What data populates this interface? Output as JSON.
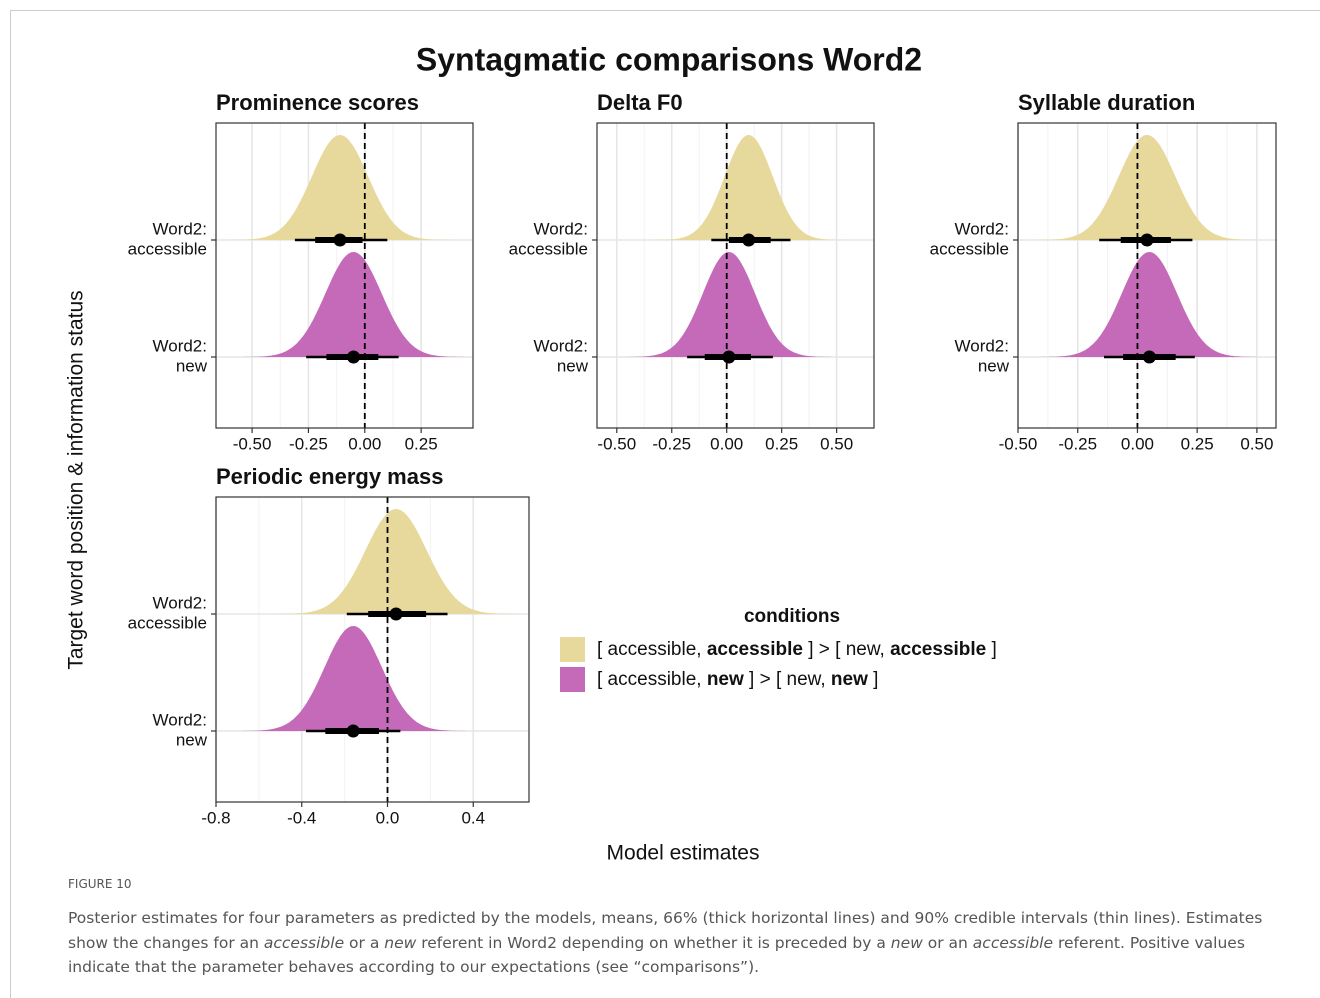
{
  "title": "Syntagmatic comparisons Word2",
  "y_label": "Target word position & information status",
  "x_label": "Model estimates",
  "legend": {
    "title": "conditions",
    "items": [
      {
        "color": "#e6d99b",
        "parts": [
          "[ accessible, ",
          "accessible",
          " ] > [ new, ",
          "accessible",
          " ]"
        ]
      },
      {
        "color": "#c46ab9",
        "parts": [
          "[ accessible, ",
          "new",
          " ] > [ new, ",
          "new",
          " ]"
        ]
      }
    ]
  },
  "caption": {
    "label": "FIGURE 10",
    "parts": [
      "Posterior estimates for four parameters as predicted by the models, means, 66% (thick horizontal lines) and 90% credible intervals (thin lines). Estimates show the changes for an ",
      "accessible",
      " or a ",
      "new",
      " referent in Word2 depending on whether it is preceded by a ",
      "new",
      " or an ",
      "accessible",
      " referent. Positive values indicate that the parameter behaves according to our expectations (see “comparisons”)."
    ]
  },
  "chart_data": [
    {
      "type": "halfeye",
      "title": "Prominence scores",
      "categories": [
        [
          "Word2:",
          "accessible"
        ],
        [
          "Word2:",
          "new"
        ]
      ],
      "colors": [
        "#e6d99b",
        "#c46ab9"
      ],
      "values": [
        -0.11,
        -0.05
      ],
      "ci66": [
        [
          -0.22,
          -0.01
        ],
        [
          -0.17,
          0.06
        ]
      ],
      "ci90": [
        [
          -0.31,
          0.1
        ],
        [
          -0.26,
          0.15
        ]
      ],
      "xlim": [
        -0.66,
        0.48
      ],
      "ref": 0,
      "xticks": [
        {
          "value": -0.5,
          "label": "-0.50"
        },
        {
          "value": -0.25,
          "label": "-0.25"
        },
        {
          "value": 0,
          "label": "0.00"
        },
        {
          "value": 0.25,
          "label": "0.25"
        }
      ],
      "grid": true
    },
    {
      "type": "halfeye",
      "title": "Delta F0",
      "categories": [
        [
          "Word2:",
          "accessible"
        ],
        [
          "Word2:",
          "new"
        ]
      ],
      "colors": [
        "#e6d99b",
        "#c46ab9"
      ],
      "values": [
        0.1,
        0.01
      ],
      "ci66": [
        [
          0.01,
          0.2
        ],
        [
          -0.1,
          0.11
        ]
      ],
      "ci90": [
        [
          -0.07,
          0.29
        ],
        [
          -0.18,
          0.21
        ]
      ],
      "xlim": [
        -0.59,
        0.67
      ],
      "ref": 0,
      "xticks": [
        {
          "value": -0.5,
          "label": "-0.50"
        },
        {
          "value": -0.25,
          "label": "-0.25"
        },
        {
          "value": 0,
          "label": "0.00"
        },
        {
          "value": 0.25,
          "label": "0.25"
        },
        {
          "value": 0.5,
          "label": "0.50"
        }
      ],
      "grid": true
    },
    {
      "type": "halfeye",
      "title": "Syllable duration",
      "categories": [
        [
          "Word2:",
          "accessible"
        ],
        [
          "Word2:",
          "new"
        ]
      ],
      "colors": [
        "#e6d99b",
        "#c46ab9"
      ],
      "values": [
        0.04,
        0.05
      ],
      "ci66": [
        [
          -0.07,
          0.14
        ],
        [
          -0.06,
          0.16
        ]
      ],
      "ci90": [
        [
          -0.16,
          0.23
        ],
        [
          -0.14,
          0.24
        ]
      ],
      "xlim": [
        -0.5,
        0.58
      ],
      "ref": 0,
      "xticks": [
        {
          "value": -0.5,
          "label": "-0.50"
        },
        {
          "value": -0.25,
          "label": "-0.25"
        },
        {
          "value": 0,
          "label": "0.00"
        },
        {
          "value": 0.25,
          "label": "0.25"
        },
        {
          "value": 0.5,
          "label": "0.50"
        }
      ],
      "grid": true
    },
    {
      "type": "halfeye",
      "title": "Periodic energy mass",
      "categories": [
        [
          "Word2:",
          "accessible"
        ],
        [
          "Word2:",
          "new"
        ]
      ],
      "colors": [
        "#e6d99b",
        "#c46ab9"
      ],
      "values": [
        0.04,
        -0.16
      ],
      "ci66": [
        [
          -0.09,
          0.18
        ],
        [
          -0.29,
          -0.04
        ]
      ],
      "ci90": [
        [
          -0.19,
          0.28
        ],
        [
          -0.38,
          0.06
        ]
      ],
      "xlim": [
        -0.8,
        0.66
      ],
      "ref": 0,
      "xticks": [
        -0.8,
        -0.4,
        {
          "value": 0,
          "label": "0.0"
        },
        0.4
      ],
      "grid": true
    }
  ]
}
